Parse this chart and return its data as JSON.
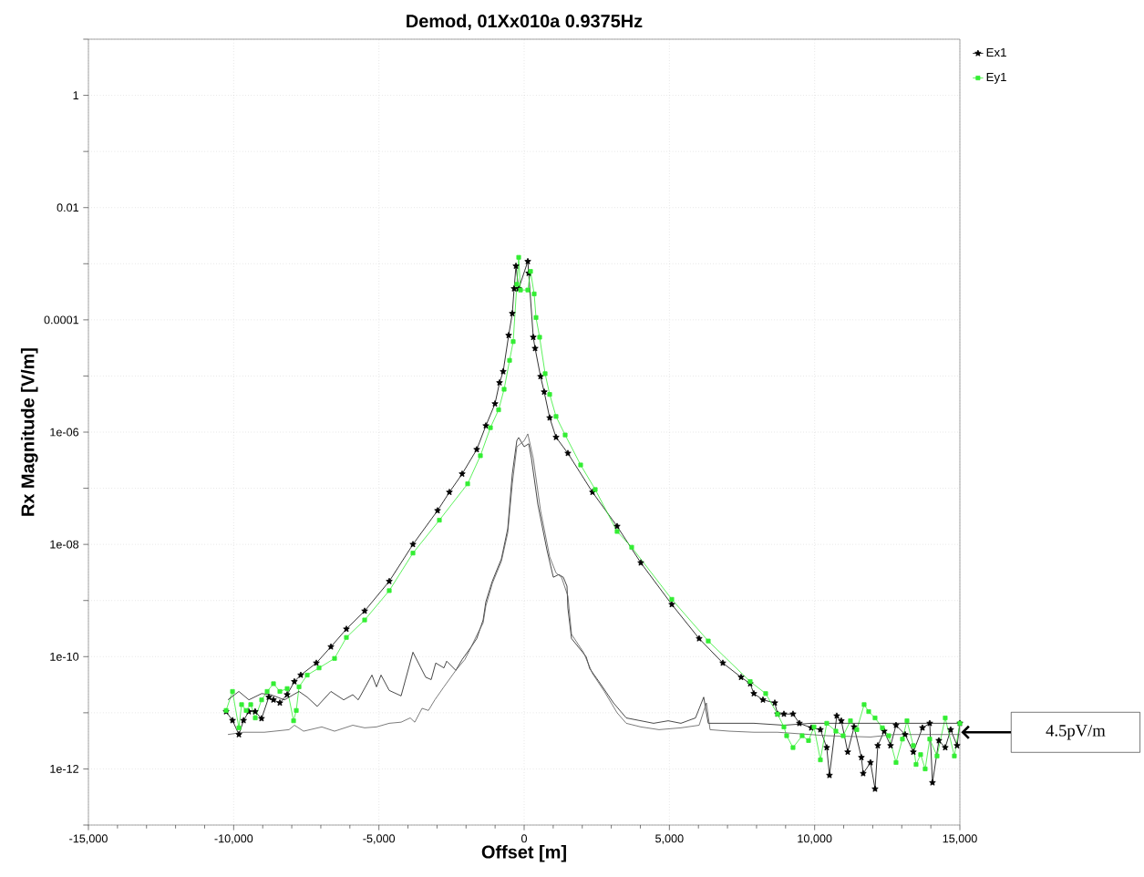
{
  "chart_data": {
    "type": "line",
    "title": "Demod, 01Xx010a  0.9375Hz",
    "xlabel": "Offset [m]",
    "ylabel": "Rx Magnitude [V/m]",
    "log": "y",
    "grid": true,
    "legend": "top right",
    "xlim": [
      -15000,
      15000
    ],
    "xticks": [
      {
        "value": -15000,
        "label": "-15,000"
      },
      {
        "value": -10000,
        "label": "-10,000"
      },
      {
        "value": -5000,
        "label": "-5,000"
      },
      0,
      {
        "value": 5000,
        "label": "5,000"
      },
      {
        "value": 10000,
        "label": "10,000"
      },
      {
        "value": 15000,
        "label": "15,000"
      }
    ],
    "ylim": [
      1e-13,
      10
    ],
    "yticks": [
      {
        "value": 1e-13,
        "label": null
      },
      {
        "value": 1e-12,
        "label": "1e-12"
      },
      {
        "value": 1e-11,
        "label": null
      },
      {
        "value": 1e-10,
        "label": "1e-10"
      },
      {
        "value": 1e-09,
        "label": null
      },
      {
        "value": 1e-08,
        "label": "1e-08"
      },
      {
        "value": 1e-07,
        "label": null
      },
      {
        "value": 1e-06,
        "label": "1e-06"
      },
      {
        "value": 1e-05,
        "label": null
      },
      {
        "value": 0.0001,
        "label": "0.0001"
      },
      {
        "value": 0.001,
        "label": null
      },
      0.01,
      {
        "value": 0.1,
        "label": null
      },
      1,
      {
        "value": 10,
        "label": null
      }
    ],
    "annotations": [
      "4.5pV/m"
    ],
    "series": [
      {
        "name": "Ex1",
        "color": "#000000",
        "marker": "star",
        "x": [
          -10260,
          -10040,
          -9820,
          -9660,
          -9480,
          -9260,
          -9040,
          -8790,
          -8630,
          -8410,
          -8160,
          -7910,
          -7690,
          -7154,
          -6652,
          -6119,
          -5491,
          -4644,
          -3828,
          -2981,
          -2573,
          -2134,
          -1632,
          -1318,
          -1004,
          -847,
          -722,
          -533,
          -408,
          -345,
          -282,
          -188,
          126,
          157,
          314,
          377,
          565,
          690,
          879,
          1098,
          1506,
          2353,
          3200,
          4016,
          5083,
          6024,
          6840,
          7468,
          7782,
          7907,
          8221,
          8629,
          8723,
          8943,
          9256,
          9476,
          9884,
          10198,
          10417,
          10511,
          10762,
          10919,
          11139,
          11359,
          11610,
          11672,
          11923,
          12080,
          12174,
          12394,
          12614,
          12802,
          13116,
          13398,
          13712,
          13963,
          14057,
          14277,
          14496,
          14684,
          14904,
          15000
        ],
        "values": [
          1.05e-11,
          7.3e-12,
          4.1e-12,
          7.3e-12,
          1.05e-11,
          1.05e-11,
          7.9e-12,
          1.9e-11,
          1.7e-11,
          1.5e-11,
          2.1e-11,
          3.6e-11,
          4.7e-11,
          7.7e-11,
          1.5e-10,
          3.1e-10,
          6.5e-10,
          2.2e-09,
          1e-08,
          4e-08,
          8.5e-08,
          1.8e-07,
          4.9e-07,
          1.3e-06,
          3.2e-06,
          7.6e-06,
          1.2e-05,
          5.3e-05,
          0.00013,
          0.00036,
          0.00091,
          0.00036,
          0.0011,
          0.00068,
          4.9e-05,
          3.1e-05,
          9.8e-06,
          5.2e-06,
          1.8e-06,
          8.1e-07,
          4.2e-07,
          8.5e-08,
          2.1e-08,
          4.7e-09,
          8.5e-10,
          2.1e-10,
          7.7e-11,
          4.3e-11,
          3.3e-11,
          2.2e-11,
          1.7e-11,
          1.5e-11,
          9.5e-12,
          9.5e-12,
          9.5e-12,
          6.5e-12,
          5.4e-12,
          5e-12,
          2.4e-12,
          7.7e-13,
          8.8e-12,
          7.2e-12,
          2e-12,
          5.6e-12,
          1.6e-12,
          8.3e-13,
          1.3e-12,
          4.4e-13,
          2.6e-12,
          4.7e-12,
          2.6e-12,
          6e-12,
          4.1e-12,
          2e-12,
          5.4e-12,
          6.5e-12,
          5.7e-13,
          3.2e-12,
          2.4e-12,
          5e-12,
          2.6e-12,
          6.5e-12
        ]
      },
      {
        "name": "Ey1",
        "color": "#33ee33",
        "marker": "square",
        "x": [
          -10260,
          -10040,
          -9820,
          -9727,
          -9570,
          -9413,
          -9256,
          -9037,
          -8848,
          -8629,
          -8409,
          -8158,
          -7938,
          -7844,
          -7750,
          -7468,
          -7060,
          -6527,
          -6119,
          -5491,
          -4644,
          -3828,
          -2918,
          -1945,
          -1506,
          -1161,
          -879,
          -690,
          -502,
          -377,
          -251,
          -188,
          -126,
          126,
          220,
          345,
          408,
          533,
          722,
          879,
          1098,
          1412,
          1945,
          2447,
          3200,
          3702,
          5083,
          6338,
          7782,
          8315,
          8723,
          8943,
          9037,
          9256,
          9570,
          9790,
          9978,
          10198,
          10417,
          10731,
          10982,
          11233,
          11453,
          11704,
          11861,
          12080,
          12331,
          12551,
          12802,
          13022,
          13179,
          13398,
          13492,
          13649,
          13806,
          13963,
          14214,
          14496,
          14810,
          15000
        ],
        "values": [
          1.1e-11,
          2.4e-11,
          5.4e-12,
          1.4e-11,
          1.1e-11,
          1.4e-11,
          8.1e-12,
          1.7e-11,
          2.4e-11,
          3.3e-11,
          2.4e-11,
          2.7e-11,
          7.2e-12,
          1.1e-11,
          2.9e-11,
          4.7e-11,
          6.3e-11,
          9.3e-11,
          2.2e-10,
          4.5e-10,
          1.5e-09,
          7e-09,
          2.7e-08,
          1.2e-07,
          3.8e-07,
          1.2e-06,
          2.5e-06,
          5.8e-06,
          1.9e-05,
          4.1e-05,
          0.00043,
          0.0013,
          0.00034,
          0.00034,
          0.00073,
          0.00029,
          0.00011,
          4.9e-05,
          1.1e-05,
          4.7e-06,
          1.9e-06,
          8.9e-07,
          2.6e-07,
          9.5e-08,
          1.7e-08,
          8.9e-09,
          1.05e-09,
          1.9e-10,
          3.6e-11,
          2.2e-11,
          9.5e-12,
          5.6e-12,
          3.9e-12,
          2.4e-12,
          3.9e-12,
          3.2e-12,
          5.6e-12,
          1.45e-12,
          6.5e-12,
          4.7e-12,
          3.9e-12,
          7.2e-12,
          5e-12,
          1.4e-11,
          1.05e-11,
          8.1e-12,
          5.4e-12,
          3.9e-12,
          1.3e-12,
          3.4e-12,
          7.2e-12,
          2.6e-12,
          1.2e-12,
          1.8e-12,
          1e-12,
          3.4e-12,
          1.7e-12,
          8.1e-12,
          1.7e-12,
          6.5e-12
        ]
      },
      {
        "color": "#1a1a1a",
        "marker": "none",
        "x": [
          -10198,
          -9821,
          -9476,
          -9037,
          -8723,
          -8252,
          -7750,
          -7468,
          -7123,
          -6652,
          -6213,
          -5899,
          -5711,
          -5240,
          -5083,
          -4926,
          -4644,
          -4236,
          -3828,
          -3389,
          -3200,
          -3044,
          -2761,
          -2667,
          -2353,
          -2134,
          -1820,
          -1632,
          -1412,
          -1318,
          -1098,
          -784,
          -565,
          -408,
          -251,
          -188,
          0,
          157,
          251,
          471,
          784,
          1004,
          1192,
          1349,
          1475,
          1506,
          1632,
          2134,
          2259,
          2573,
          3075,
          3514,
          4016,
          4456,
          4958,
          5397,
          5899,
          6181,
          6338,
          6840,
          7907,
          8943,
          9884,
          10825,
          11923,
          13022,
          14057,
          15000
        ],
        "values": [
          1.7e-11,
          2.4e-11,
          1.7e-11,
          2.2e-11,
          2.1e-11,
          1.7e-11,
          2.4e-11,
          1.9e-11,
          1.3e-11,
          2.4e-11,
          1.7e-11,
          2.1e-11,
          1.7e-11,
          4.7e-11,
          2.9e-11,
          4.7e-11,
          2.5e-11,
          2e-11,
          1.2e-10,
          4.3e-11,
          3.9e-11,
          7.7e-11,
          6.3e-11,
          8.3e-11,
          5.7e-11,
          8.9e-11,
          1.5e-10,
          2.1e-10,
          4.5e-10,
          9.5e-10,
          2.2e-09,
          5.5e-09,
          1.9e-08,
          1.8e-07,
          7.1e-07,
          8e-07,
          5.5e-07,
          6.2e-07,
          3.4e-07,
          5.2e-08,
          8e-09,
          2.6e-09,
          2.9e-09,
          2.6e-09,
          1.8e-09,
          7.3e-10,
          2.1e-10,
          1e-10,
          6.1e-11,
          3.6e-11,
          1.5e-11,
          8.1e-12,
          7.2e-12,
          6.5e-12,
          7.2e-12,
          6.5e-12,
          8.1e-12,
          1.9e-11,
          6.5e-12,
          6.5e-12,
          6.5e-12,
          6e-12,
          6.5e-12,
          6.5e-12,
          6.5e-12,
          6.5e-12,
          6.5e-12,
          6.5e-12
        ]
      },
      {
        "color": "#5a5a5a",
        "marker": "none",
        "x": [
          -10198,
          -9664,
          -8943,
          -8095,
          -7907,
          -7593,
          -6966,
          -6527,
          -5899,
          -5491,
          -5083,
          -4644,
          -4236,
          -3922,
          -3765,
          -3514,
          -3295,
          -3075,
          -2761,
          -2353,
          -2040,
          -1820,
          -1632,
          -1412,
          -1318,
          -1098,
          -784,
          -565,
          -408,
          -251,
          0,
          126,
          314,
          565,
          879,
          1098,
          1286,
          1506,
          1632,
          2040,
          2353,
          2761,
          3200,
          3514,
          4016,
          4644,
          5397,
          6024,
          6275,
          6400,
          7060,
          7907,
          8723,
          10449,
          11923,
          12739,
          15000
        ],
        "values": [
          4.1e-12,
          4.5e-12,
          4.5e-12,
          5e-12,
          6e-12,
          4.7e-12,
          5.6e-12,
          4.7e-12,
          6e-12,
          5.4e-12,
          5.6e-12,
          6.5e-12,
          6.8e-12,
          8.1e-12,
          6.8e-12,
          1.2e-11,
          1.1e-11,
          1.7e-11,
          2.9e-11,
          5.7e-11,
          8.9e-11,
          1.5e-10,
          2.4e-10,
          4e-10,
          8e-10,
          2e-09,
          5e-09,
          1.6e-08,
          1.2e-07,
          5.5e-07,
          7e-07,
          9.3e-07,
          3.4e-07,
          4e-08,
          6e-09,
          3.1e-09,
          2.6e-09,
          1.2e-09,
          2.5e-10,
          1.2e-10,
          5e-11,
          2.4e-11,
          1e-11,
          6.5e-12,
          5.6e-12,
          5e-12,
          5.4e-12,
          6e-12,
          1.5e-11,
          5e-12,
          4.7e-12,
          4.5e-12,
          4.5e-12,
          3.9e-12,
          3.7e-12,
          4.1e-12,
          4.1e-12
        ]
      }
    ]
  }
}
